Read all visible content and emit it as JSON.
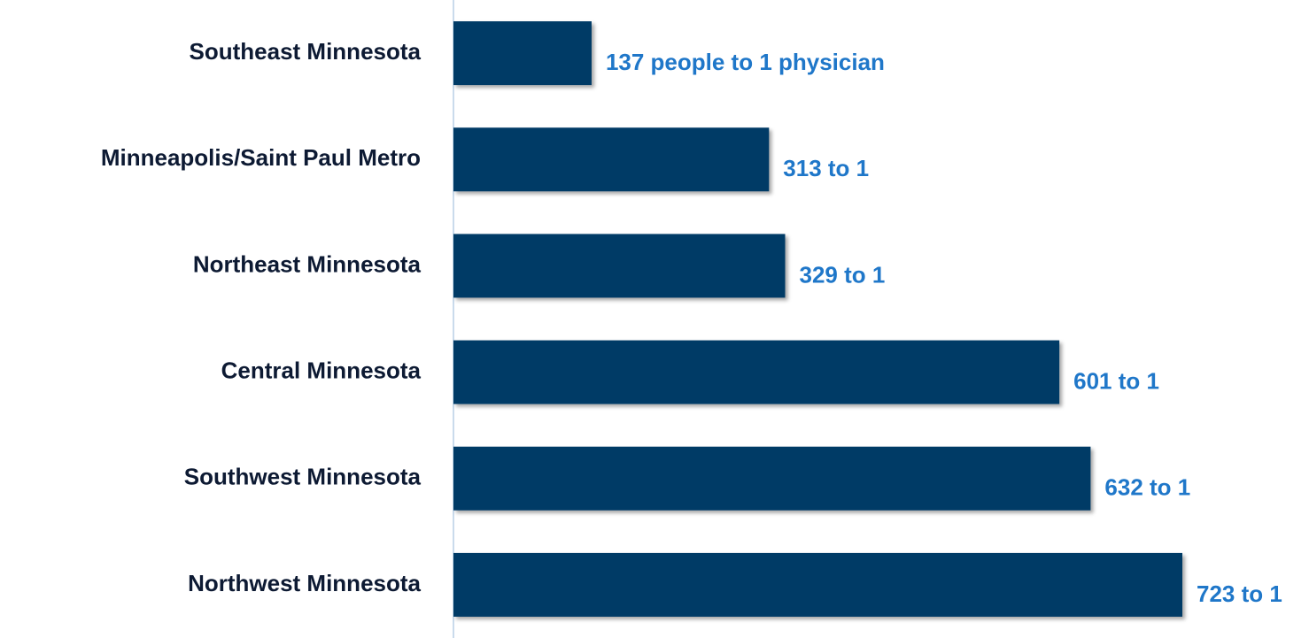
{
  "chart_data": {
    "type": "bar",
    "orientation": "horizontal",
    "categories": [
      "Southeast Minnesota",
      "Minneapolis/Saint Paul Metro",
      "Northeast Minnesota",
      "Central Minnesota",
      "Southwest Minnesota",
      "Northwest Minnesota"
    ],
    "values": [
      137,
      313,
      329,
      601,
      632,
      723
    ],
    "value_labels": [
      "137 people to 1 physician",
      "313 to 1",
      "329 to 1",
      "601 to 1",
      "632 to 1",
      "723 to 1"
    ],
    "color": "#023a66",
    "label_color": "#1f77c9"
  }
}
